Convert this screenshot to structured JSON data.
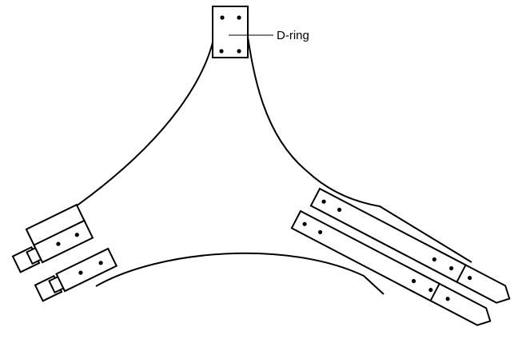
{
  "diagram": {
    "callout": {
      "label": "D-ring"
    }
  }
}
